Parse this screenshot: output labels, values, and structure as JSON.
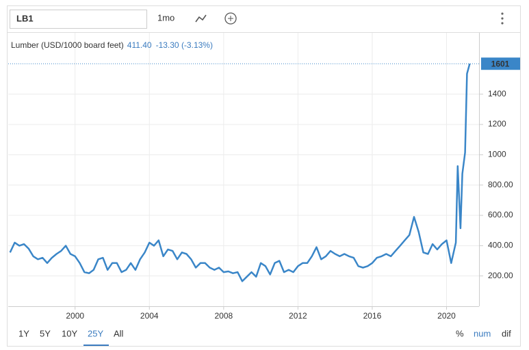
{
  "toolbar": {
    "symbol": "LB1",
    "interval": "1mo",
    "ranges": [
      "1Y",
      "5Y",
      "10Y",
      "25Y",
      "All"
    ],
    "modes": [
      "%",
      "num",
      "dif"
    ]
  },
  "chart_data": {
    "type": "line",
    "legend_value": "411.40",
    "legend_change": "-13.30 (-3.13%)",
    "xlim": [
      1996.4,
      2021.75
    ],
    "xticks": [
      2000,
      2004,
      2008,
      2012,
      2016,
      2020
    ],
    "ylim": [
      0,
      1805
    ],
    "yticks": [
      {
        "value": 200,
        "label": "200.00"
      },
      {
        "value": 400,
        "label": "400.00"
      },
      {
        "value": 600,
        "label": "600.00"
      },
      {
        "value": 800,
        "label": "800.00"
      },
      1000,
      1200,
      1400
    ],
    "grid": true,
    "series": [
      {
        "name": "Lumber (USD/1000 board feet)",
        "color": "#3a86c8",
        "x": [
          1996.5,
          1996.75,
          1997,
          1997.25,
          1997.5,
          1997.75,
          1998,
          1998.25,
          1998.5,
          1998.75,
          1999,
          1999.25,
          1999.5,
          1999.75,
          2000,
          2000.25,
          2000.5,
          2000.75,
          2001,
          2001.25,
          2001.5,
          2001.75,
          2002,
          2002.25,
          2002.5,
          2002.75,
          2003,
          2003.25,
          2003.5,
          2003.75,
          2004,
          2004.25,
          2004.5,
          2004.75,
          2005,
          2005.25,
          2005.5,
          2005.75,
          2006,
          2006.25,
          2006.5,
          2006.75,
          2007,
          2007.25,
          2007.5,
          2007.75,
          2008,
          2008.25,
          2008.5,
          2008.75,
          2009,
          2009.25,
          2009.5,
          2009.75,
          2010,
          2010.25,
          2010.5,
          2010.75,
          2011,
          2011.25,
          2011.5,
          2011.75,
          2012,
          2012.25,
          2012.5,
          2012.75,
          2013,
          2013.25,
          2013.5,
          2013.75,
          2014,
          2014.25,
          2014.5,
          2014.75,
          2015,
          2015.25,
          2015.5,
          2015.75,
          2016,
          2016.25,
          2016.5,
          2016.75,
          2017,
          2017.25,
          2017.5,
          2017.75,
          2018,
          2018.25,
          2018.5,
          2018.75,
          2019,
          2019.25,
          2019.5,
          2019.75,
          2020,
          2020.25,
          2020.5,
          2020.6,
          2020.75,
          2020.85,
          2021,
          2021.1,
          2021.25
        ],
        "values": [
          355,
          420,
          400,
          410,
          380,
          330,
          310,
          320,
          285,
          320,
          345,
          365,
          400,
          345,
          330,
          285,
          225,
          218,
          240,
          310,
          320,
          240,
          285,
          285,
          225,
          240,
          285,
          240,
          310,
          355,
          420,
          400,
          435,
          330,
          375,
          365,
          310,
          355,
          345,
          310,
          255,
          285,
          285,
          255,
          240,
          255,
          225,
          230,
          218,
          225,
          165,
          195,
          225,
          195,
          285,
          265,
          210,
          285,
          300,
          225,
          240,
          225,
          265,
          285,
          285,
          330,
          390,
          310,
          330,
          365,
          345,
          330,
          345,
          330,
          320,
          265,
          255,
          265,
          285,
          320,
          330,
          345,
          330,
          365,
          400,
          435,
          470,
          590,
          490,
          355,
          345,
          410,
          375,
          410,
          435,
          285,
          420,
          925,
          515,
          875,
          1015,
          1535,
          1601
        ]
      }
    ]
  }
}
